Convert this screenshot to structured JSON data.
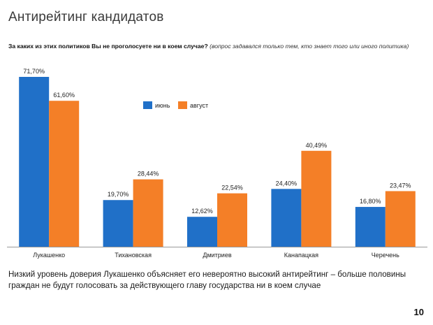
{
  "slide": {
    "title": "Антирейтинг кандидатов",
    "question_main": "За каких из этих политиков Вы не проголосуете ни в коем случае?",
    "question_note": "(вопрос задавался только тем, кто знает того или иного политика)",
    "conclusion": "Низкий уровень доверия Лукашенко объясняет его невероятно высокий антирейтинг – больше половины граждан не будут голосовать за действующего главу государства ни в коем случае",
    "page_number": "10"
  },
  "chart_data": {
    "type": "bar",
    "categories": [
      "Лукашенко",
      "Тихановская",
      "Дмитриев",
      "Канапацкая",
      "Черечень"
    ],
    "series": [
      {
        "name": "июнь",
        "color": "#2070c8",
        "values": [
          71.7,
          19.7,
          12.62,
          24.4,
          16.8
        ],
        "labels": [
          "71,70%",
          "19,70%",
          "12,62%",
          "24,40%",
          "16,80%"
        ]
      },
      {
        "name": "август",
        "color": "#f47f27",
        "values": [
          61.6,
          28.44,
          22.54,
          40.49,
          23.47
        ],
        "labels": [
          "61,60%",
          "28,44%",
          "22,54%",
          "40,49%",
          "23,47%"
        ]
      }
    ],
    "ylim": [
      0,
      71.7
    ],
    "grid": false,
    "legend_position": "top-center"
  }
}
